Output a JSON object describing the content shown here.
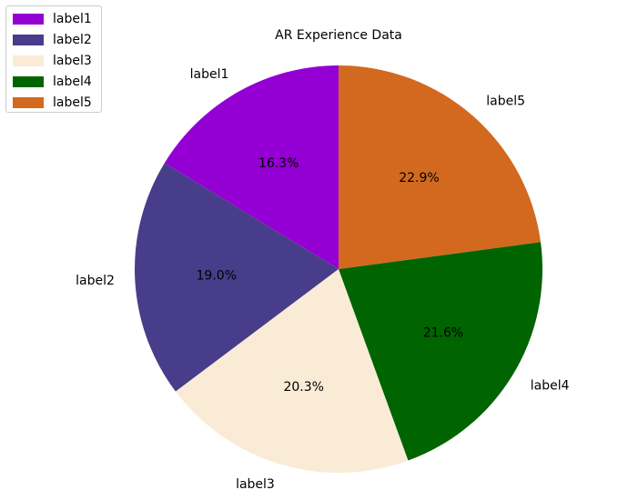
{
  "chart_data": {
    "type": "pie",
    "title": "AR Experience Data",
    "categories": [
      "label1",
      "label2",
      "label3",
      "label4",
      "label5"
    ],
    "values": [
      16.3,
      19.0,
      20.3,
      21.6,
      22.9
    ],
    "percent_labels": [
      "16.3%",
      "19.0%",
      "20.3%",
      "21.6%",
      "22.9%"
    ],
    "colors": [
      "#9400D3",
      "#483D8B",
      "#FAEBD7",
      "#006400",
      "#D2691E"
    ],
    "start_angle_deg": 90,
    "direction": "counterclockwise",
    "legend_position": "top-left"
  }
}
